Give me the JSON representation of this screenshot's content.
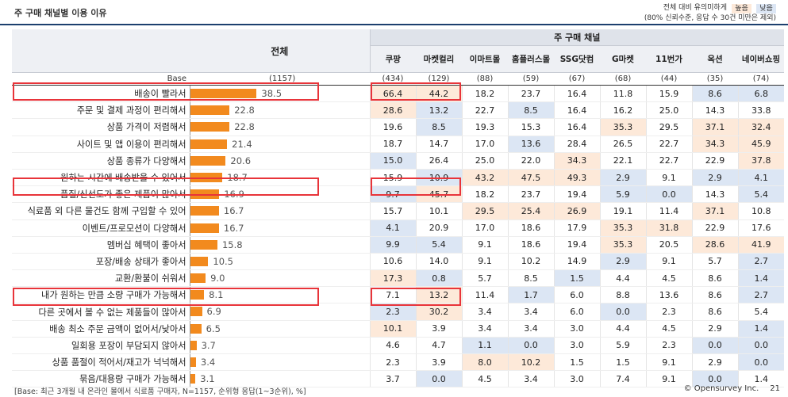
{
  "title": "주 구매 채널별 이용 이유",
  "legend": {
    "line1_text": "전체 대비 유의미하게",
    "high_label": "높음",
    "low_label": "낮음",
    "line2_text": "(80% 신뢰수준, 응답 수 30건 미만은 제외)",
    "colors": {
      "high": "#fde9d9",
      "low": "#dce6f4"
    }
  },
  "header": {
    "total_label": "전체",
    "group_label": "주 구매 채널",
    "channels": [
      "쿠팡",
      "마켓컬리",
      "이마트몰",
      "홈플러스몰",
      "SSG닷컴",
      "G마켓",
      "11번가",
      "옥션",
      "네이버쇼핑"
    ]
  },
  "base": {
    "label": "Base",
    "total": "(1157)",
    "values": [
      "(434)",
      "(129)",
      "(88)",
      "(59)",
      "(67)",
      "(68)",
      "(44)",
      "(35)",
      "(74)"
    ]
  },
  "bar_color": "#f28a1e",
  "rows": [
    {
      "label": "배송이 빨라서",
      "total": "38.5",
      "values": [
        "66.4",
        "44.2",
        "18.2",
        "23.7",
        "16.4",
        "11.8",
        "15.9",
        "8.6",
        "6.8"
      ],
      "flags": [
        "h",
        "h",
        "",
        "",
        "",
        "",
        "",
        "l",
        "l"
      ]
    },
    {
      "label": "주문 및 결제 과정이 편리해서",
      "total": "22.8",
      "values": [
        "28.6",
        "13.2",
        "22.7",
        "8.5",
        "16.4",
        "16.2",
        "25.0",
        "14.3",
        "33.8"
      ],
      "flags": [
        "h",
        "l",
        "",
        "l",
        "",
        "",
        "",
        "",
        ""
      ]
    },
    {
      "label": "상품 가격이 저렴해서",
      "total": "22.8",
      "values": [
        "19.6",
        "8.5",
        "19.3",
        "15.3",
        "16.4",
        "35.3",
        "29.5",
        "37.1",
        "32.4"
      ],
      "flags": [
        "",
        "l",
        "",
        "",
        "",
        "h",
        "",
        "h",
        "h"
      ]
    },
    {
      "label": "사이트 및 앱 이용이 편리해서",
      "total": "21.4",
      "values": [
        "18.7",
        "14.7",
        "17.0",
        "13.6",
        "28.4",
        "26.5",
        "22.7",
        "34.3",
        "45.9"
      ],
      "flags": [
        "",
        "",
        "",
        "l",
        "",
        "",
        "",
        "h",
        "h"
      ]
    },
    {
      "label": "상품 종류가 다양해서",
      "total": "20.6",
      "values": [
        "15.0",
        "26.4",
        "25.0",
        "22.0",
        "34.3",
        "22.1",
        "22.7",
        "22.9",
        "37.8"
      ],
      "flags": [
        "l",
        "",
        "",
        "",
        "h",
        "",
        "",
        "",
        "h"
      ]
    },
    {
      "label": "원하는 시간에 배송받을 수 있어서",
      "total": "18.7",
      "values": [
        "15.9",
        "10.9",
        "43.2",
        "47.5",
        "49.3",
        "2.9",
        "9.1",
        "2.9",
        "4.1"
      ],
      "flags": [
        "",
        "l",
        "h",
        "h",
        "h",
        "l",
        "",
        "l",
        "l"
      ]
    },
    {
      "label": "품질/신선도가 좋은 제품이 많아서",
      "total": "16.9",
      "values": [
        "9.7",
        "45.7",
        "18.2",
        "23.7",
        "19.4",
        "5.9",
        "0.0",
        "14.3",
        "5.4"
      ],
      "flags": [
        "l",
        "h",
        "",
        "",
        "",
        "l",
        "l",
        "",
        "l"
      ]
    },
    {
      "label": "식료품 외 다른 물건도 함께 구입할 수 있어",
      "total": "16.7",
      "values": [
        "15.7",
        "10.1",
        "29.5",
        "25.4",
        "26.9",
        "19.1",
        "11.4",
        "37.1",
        "10.8"
      ],
      "flags": [
        "",
        "",
        "h",
        "h",
        "h",
        "",
        "",
        "h",
        ""
      ]
    },
    {
      "label": "이벤트/프로모션이 다양해서",
      "total": "16.7",
      "values": [
        "4.1",
        "20.9",
        "17.0",
        "18.6",
        "17.9",
        "35.3",
        "31.8",
        "22.9",
        "17.6"
      ],
      "flags": [
        "l",
        "",
        "",
        "",
        "",
        "h",
        "h",
        "",
        ""
      ]
    },
    {
      "label": "멤버십 혜택이 좋아서",
      "total": "15.8",
      "values": [
        "9.9",
        "5.4",
        "9.1",
        "18.6",
        "19.4",
        "35.3",
        "20.5",
        "28.6",
        "41.9"
      ],
      "flags": [
        "l",
        "l",
        "",
        "",
        "",
        "h",
        "",
        "h",
        "h"
      ]
    },
    {
      "label": "포장/배송 상태가 좋아서",
      "total": "10.5",
      "values": [
        "10.6",
        "14.0",
        "9.1",
        "10.2",
        "14.9",
        "2.9",
        "9.1",
        "5.7",
        "2.7"
      ],
      "flags": [
        "",
        "",
        "",
        "",
        "",
        "l",
        "",
        "",
        "l"
      ]
    },
    {
      "label": "교환/환불이 쉬워서",
      "total": "9.0",
      "values": [
        "17.3",
        "0.8",
        "5.7",
        "8.5",
        "1.5",
        "4.4",
        "4.5",
        "8.6",
        "1.4"
      ],
      "flags": [
        "h",
        "l",
        "",
        "",
        "l",
        "",
        "",
        "",
        "l"
      ]
    },
    {
      "label": "내가 원하는 만큼 소량 구매가 가능해서",
      "total": "8.1",
      "values": [
        "7.1",
        "13.2",
        "11.4",
        "1.7",
        "6.0",
        "8.8",
        "13.6",
        "8.6",
        "2.7"
      ],
      "flags": [
        "",
        "h",
        "",
        "l",
        "",
        "",
        "",
        "",
        "l"
      ]
    },
    {
      "label": "다른 곳에서 볼 수 없는 제품들이 많아서",
      "total": "6.9",
      "values": [
        "2.3",
        "30.2",
        "3.4",
        "3.4",
        "6.0",
        "0.0",
        "2.3",
        "8.6",
        "5.4"
      ],
      "flags": [
        "l",
        "h",
        "",
        "",
        "",
        "l",
        "",
        "",
        ""
      ]
    },
    {
      "label": "배송 최소 주문 금액이 없어서/낮아서",
      "total": "6.5",
      "values": [
        "10.1",
        "3.9",
        "3.4",
        "3.4",
        "3.0",
        "4.4",
        "4.5",
        "2.9",
        "1.4"
      ],
      "flags": [
        "h",
        "",
        "",
        "",
        "",
        "",
        "",
        "",
        "l"
      ]
    },
    {
      "label": "일회용 포장이 부담되지 않아서",
      "total": "3.7",
      "values": [
        "4.6",
        "4.7",
        "1.1",
        "0.0",
        "3.0",
        "5.9",
        "2.3",
        "0.0",
        "0.0"
      ],
      "flags": [
        "",
        "",
        "l",
        "l",
        "",
        "",
        "",
        "l",
        "l"
      ]
    },
    {
      "label": "상품 품절이 적어서/재고가 넉넉해서",
      "total": "3.4",
      "values": [
        "2.3",
        "3.9",
        "8.0",
        "10.2",
        "1.5",
        "1.5",
        "9.1",
        "2.9",
        "0.0"
      ],
      "flags": [
        "",
        "",
        "h",
        "h",
        "",
        "",
        "",
        "",
        "l"
      ]
    },
    {
      "label": "묶음/대용량 구매가 가능해서",
      "total": "3.1",
      "values": [
        "3.7",
        "0.0",
        "4.5",
        "3.4",
        "3.0",
        "7.4",
        "9.1",
        "0.0",
        "1.4"
      ],
      "flags": [
        "",
        "l",
        "",
        "",
        "",
        "",
        "",
        "l",
        ""
      ]
    }
  ],
  "footer": {
    "note": "[Base: 최근 3개월 내 온라인 몰에서 식료품 구매자, N=1157, 순위형 응답(1~3순위), %]",
    "copyright": "© Opensurvey Inc.",
    "page": "21"
  }
}
